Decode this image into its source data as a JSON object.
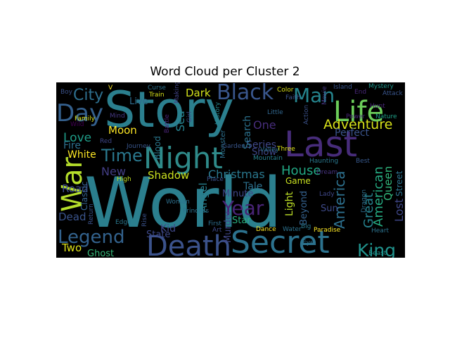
{
  "chart_data": {
    "type": "wordcloud",
    "title": "Word Cloud per Cluster 2",
    "background": "#000000",
    "words": [
      {
        "text": "World",
        "color": "#2b7f8e"
      },
      {
        "text": "Story",
        "color": "#2b7f8e"
      },
      {
        "text": "Night",
        "color": "#2f8b8a"
      },
      {
        "text": "Last",
        "color": "#472c7a"
      },
      {
        "text": "Secret",
        "color": "#2c728e"
      },
      {
        "text": "Death",
        "color": "#3b528b"
      },
      {
        "text": "War",
        "color": "#b5de2b"
      },
      {
        "text": "Day",
        "color": "#34608d"
      },
      {
        "text": "Life",
        "color": "#6ccd5a"
      },
      {
        "text": "Black",
        "color": "#39568c"
      },
      {
        "text": "Man",
        "color": "#25858e"
      },
      {
        "text": "Legend",
        "color": "#33628d"
      },
      {
        "text": "King",
        "color": "#20928c"
      },
      {
        "text": "Year",
        "color": "#482475"
      },
      {
        "text": "Time",
        "color": "#2a788e"
      },
      {
        "text": "City",
        "color": "#2e6f8e"
      },
      {
        "text": "Adventure",
        "color": "#d8e219"
      },
      {
        "text": "House",
        "color": "#22a884"
      },
      {
        "text": "Love",
        "color": "#1f9e89"
      },
      {
        "text": "America",
        "color": "#2d708e"
      },
      {
        "text": "Christmas",
        "color": "#2a788e"
      },
      {
        "text": "American",
        "color": "#25ab82"
      },
      {
        "text": "Great",
        "color": "#26828e"
      },
      {
        "text": "Queen",
        "color": "#32b67a"
      },
      {
        "text": "Lost",
        "color": "#3f4788"
      },
      {
        "text": "New",
        "color": "#433e85"
      },
      {
        "text": "Shadow",
        "color": "#cae11f"
      },
      {
        "text": "Moon",
        "color": "#fde725"
      },
      {
        "text": "White",
        "color": "#fde725"
      },
      {
        "text": "Fire",
        "color": "#2d708e"
      },
      {
        "text": "Road",
        "color": "#3e4c8a"
      },
      {
        "text": "Dead",
        "color": "#3a548c"
      },
      {
        "text": "Two",
        "color": "#dfe318"
      },
      {
        "text": "Ghost",
        "color": "#35b779"
      },
      {
        "text": "State",
        "color": "#3e4989"
      },
      {
        "text": "Kid",
        "color": "#3f4788"
      },
      {
        "text": "Angel",
        "color": "#277f8e"
      },
      {
        "text": "Minute",
        "color": "#3f4788"
      },
      {
        "text": "Star",
        "color": "#29af7f"
      },
      {
        "text": "Tale",
        "color": "#2d708e"
      },
      {
        "text": "Series",
        "color": "#3f4788"
      },
      {
        "text": "Show",
        "color": "#3f4788"
      },
      {
        "text": "Search",
        "color": "#2c728e"
      },
      {
        "text": "One",
        "color": "#472d7b"
      },
      {
        "text": "Perfect",
        "color": "#3a538b"
      },
      {
        "text": "Sun",
        "color": "#3e4a89"
      },
      {
        "text": "Game",
        "color": "#c8e020"
      },
      {
        "text": "Light",
        "color": "#bddf26"
      },
      {
        "text": "Beyond",
        "color": "#34618d"
      },
      {
        "text": "Street",
        "color": "#2c728e"
      },
      {
        "text": "Classic",
        "color": "#34618d"
      },
      {
        "text": "Sea",
        "color": "#26828e"
      },
      {
        "text": "Blood",
        "color": "#2a788e"
      },
      {
        "text": "Dark",
        "color": "#d2e21b"
      },
      {
        "text": "Live",
        "color": "#2f6c8e"
      },
      {
        "text": "Murder",
        "color": "#404688"
      },
      {
        "text": "Monster",
        "color": "#2d708e"
      },
      {
        "text": "Mountain",
        "color": "#27808e"
      },
      {
        "text": "Valley",
        "color": "#2d708e"
      },
      {
        "text": "Little",
        "color": "#31668e"
      },
      {
        "text": "Three",
        "color": "#dde318"
      },
      {
        "text": "Action",
        "color": "#3b528b"
      },
      {
        "text": "Color",
        "color": "#dde318"
      },
      {
        "text": "Mystery",
        "color": "#1f968b"
      },
      {
        "text": "Island",
        "color": "#39558c"
      },
      {
        "text": "Attack",
        "color": "#39558c"
      },
      {
        "text": "Nature",
        "color": "#1fa088"
      },
      {
        "text": "Power",
        "color": "#482777"
      },
      {
        "text": "Movie",
        "color": "#453882"
      },
      {
        "text": "Haunting",
        "color": "#2a788e"
      },
      {
        "text": "Dream",
        "color": "#46337f"
      },
      {
        "text": "Best",
        "color": "#38598c"
      },
      {
        "text": "Lady",
        "color": "#3f4788"
      },
      {
        "text": "Heart",
        "color": "#2c728e"
      },
      {
        "text": "Beast",
        "color": "#21918c"
      },
      {
        "text": "Water",
        "color": "#2c728e"
      },
      {
        "text": "Dance",
        "color": "#fde725"
      },
      {
        "text": "Big",
        "color": "#2a788e"
      },
      {
        "text": "Paradise",
        "color": "#fde725"
      },
      {
        "text": "Eye",
        "color": "#2c728e"
      },
      {
        "text": "Art",
        "color": "#3e4a89"
      },
      {
        "text": "First",
        "color": "#2e6e8e"
      },
      {
        "text": "Rise",
        "color": "#3a538b"
      },
      {
        "text": "Edge",
        "color": "#2a788e"
      },
      {
        "text": "Return",
        "color": "#3b528b"
      },
      {
        "text": "High",
        "color": "#c2df23"
      },
      {
        "text": "Woman",
        "color": "#2d708e"
      },
      {
        "text": "Princess",
        "color": "#2c728e"
      },
      {
        "text": "Place",
        "color": "#3b528b"
      },
      {
        "text": "Journey",
        "color": "#39568c"
      },
      {
        "text": "Red",
        "color": "#3f4788"
      },
      {
        "text": "Battle",
        "color": "#482475"
      },
      {
        "text": "Garden",
        "color": "#39568c"
      },
      {
        "text": "History",
        "color": "#25858e"
      },
      {
        "text": "Making",
        "color": "#414487"
      },
      {
        "text": "Faith",
        "color": "#3b528b"
      },
      {
        "text": "Curse",
        "color": "#2c728e"
      },
      {
        "text": "Train",
        "color": "#d8e219"
      },
      {
        "text": "Boy",
        "color": "#3b528b"
      },
      {
        "text": "V",
        "color": "#fde725"
      },
      {
        "text": "Mind",
        "color": "#453882"
      },
      {
        "text": "Family",
        "color": "#dde318"
      },
      {
        "text": "Wild",
        "color": "#440154"
      },
      {
        "text": "Girl",
        "color": "#3f4788"
      },
      {
        "text": "Dragon",
        "color": "#2e6e8e"
      },
      {
        "text": "End",
        "color": "#482878"
      },
      {
        "text": "Hunt",
        "color": "#482878"
      }
    ]
  }
}
